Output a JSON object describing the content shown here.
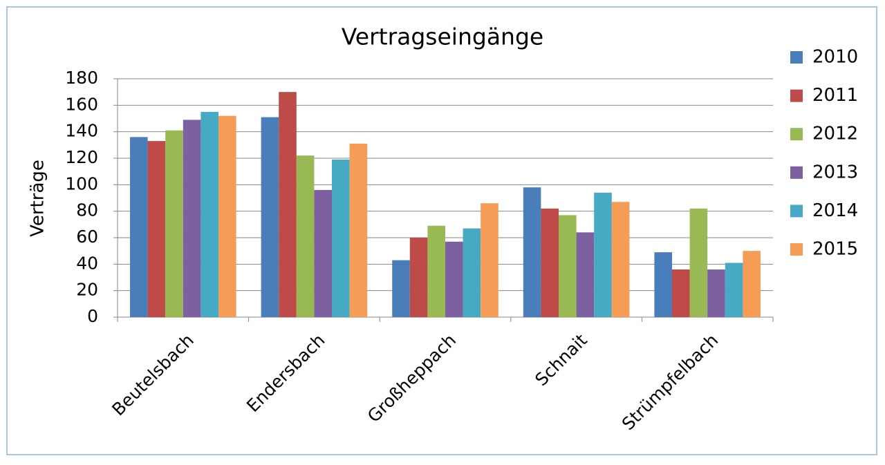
{
  "chart_data": {
    "type": "bar",
    "title": "Vertragseingänge",
    "y_label": "Verträge",
    "categories": [
      "Beutelsbach",
      "Endersbach",
      "Großheppach",
      "Schnait",
      "Strümpfelbach"
    ],
    "series": [
      {
        "name": "2010",
        "color": "#4a7ebb",
        "values": [
          136,
          151,
          43,
          98,
          49
        ]
      },
      {
        "name": "2011",
        "color": "#be4b48",
        "values": [
          133,
          170,
          60,
          82,
          36
        ]
      },
      {
        "name": "2012",
        "color": "#98b954",
        "values": [
          141,
          122,
          69,
          77,
          82
        ]
      },
      {
        "name": "2013",
        "color": "#7d60a0",
        "values": [
          149,
          96,
          57,
          64,
          36
        ]
      },
      {
        "name": "2014",
        "color": "#46aac5",
        "values": [
          155,
          119,
          67,
          94,
          41
        ]
      },
      {
        "name": "2015",
        "color": "#f59d56",
        "values": [
          152,
          131,
          86,
          87,
          50
        ]
      }
    ],
    "ylim": [
      0,
      180
    ],
    "yticks": [
      0,
      20,
      40,
      60,
      80,
      100,
      120,
      140,
      160,
      180
    ],
    "grid": true,
    "legend": "right"
  }
}
